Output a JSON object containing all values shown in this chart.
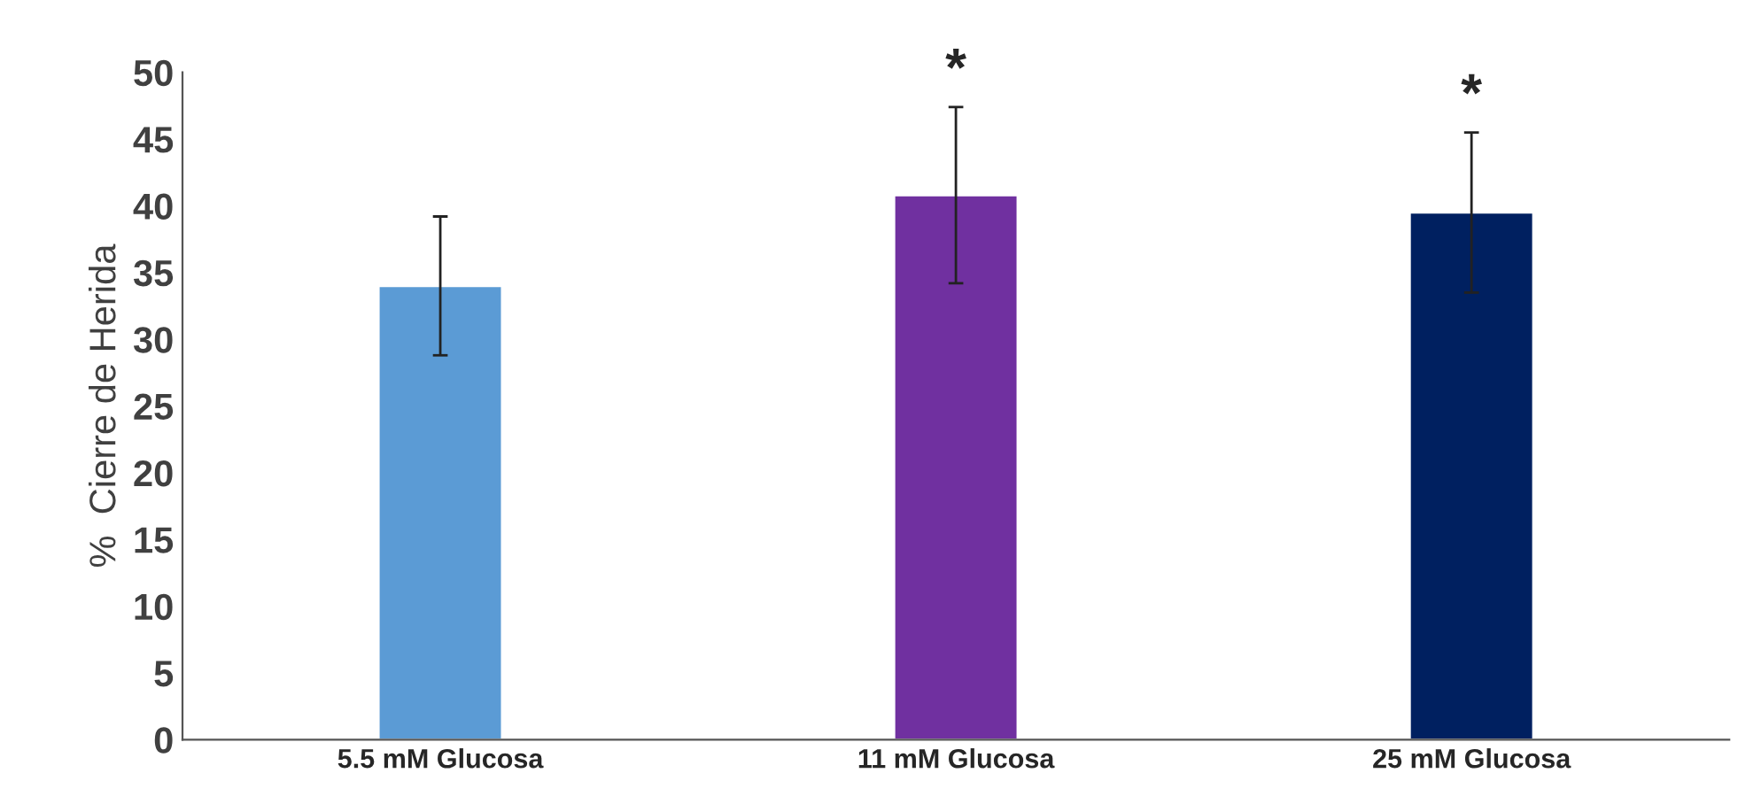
{
  "chart_data": {
    "type": "bar",
    "ylabel": "%  Cierre de Herida",
    "categories": [
      "5.5 mM Glucosa",
      "11 mM Glucosa",
      "25 mM Glucosa"
    ],
    "values": [
      34,
      40.8,
      39.5
    ],
    "colors": [
      "#5b9bd5",
      "#7030a0",
      "#002060"
    ],
    "errors": [
      5.2,
      6.6,
      6
    ],
    "ylim": [
      0,
      50
    ],
    "yticks": [
      0,
      5,
      10,
      15,
      20,
      25,
      30,
      35,
      40,
      45,
      50
    ],
    "annotations": [
      {
        "text": "*",
        "x": "11 mM Glucosa",
        "y": 47.4
      },
      {
        "text": "*",
        "x": "25 mM Glucosa",
        "y": 45.5
      }
    ],
    "grid": false,
    "legend": false
  }
}
